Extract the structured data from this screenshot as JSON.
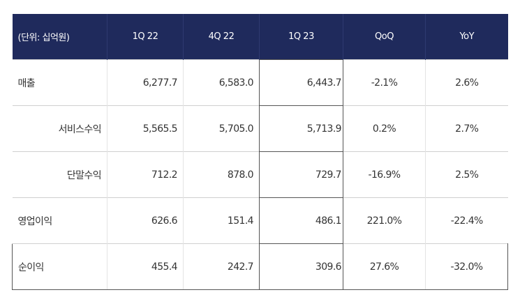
{
  "table": {
    "unit_label": "(단위: 십억원)",
    "columns": [
      "1Q 22",
      "4Q 22",
      "1Q 23",
      "QoQ",
      "YoY"
    ],
    "rows": [
      {
        "label": "매출",
        "indent": false,
        "q1_22": "6,277.7",
        "q4_22": "6,583.0",
        "q1_23": "6,443.7",
        "qoq": "-2.1%",
        "yoy": "2.6%"
      },
      {
        "label": "서비스수익",
        "indent": true,
        "q1_22": "5,565.5",
        "q4_22": "5,705.0",
        "q1_23": "5,713.9",
        "qoq": "0.2%",
        "yoy": "2.7%"
      },
      {
        "label": "단말수익",
        "indent": true,
        "q1_22": "712.2",
        "q4_22": "878.0",
        "q1_23": "729.7",
        "qoq": "-16.9%",
        "yoy": "2.5%"
      },
      {
        "label": "영업이익",
        "indent": false,
        "q1_22": "626.6",
        "q4_22": "151.4",
        "q1_23": "486.1",
        "qoq": "221.0%",
        "yoy": "-22.4%"
      },
      {
        "label": "순이익",
        "indent": false,
        "q1_22": "455.4",
        "q4_22": "242.7",
        "q1_23": "309.6",
        "qoq": "27.6%",
        "yoy": "-32.0%"
      }
    ]
  },
  "colors": {
    "header_bg": "#1f2a5c",
    "header_text": "#ffffff",
    "body_text": "#333333"
  }
}
